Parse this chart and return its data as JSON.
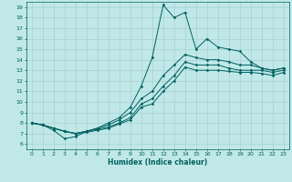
{
  "xlabel": "Humidex (Indice chaleur)",
  "bg_color": "#c0e8e8",
  "grid_color": "#a8d0d0",
  "line_color": "#006060",
  "xlim": [
    -0.5,
    23.5
  ],
  "ylim": [
    5.5,
    19.5
  ],
  "xticks": [
    0,
    1,
    2,
    3,
    4,
    5,
    6,
    7,
    8,
    9,
    10,
    11,
    12,
    13,
    14,
    15,
    16,
    17,
    18,
    19,
    20,
    21,
    22,
    23
  ],
  "yticks": [
    6,
    7,
    8,
    9,
    10,
    11,
    12,
    13,
    14,
    15,
    16,
    17,
    18,
    19
  ],
  "line1_y": [
    8.0,
    7.8,
    7.3,
    6.5,
    6.7,
    7.2,
    7.5,
    8.0,
    8.5,
    9.5,
    11.5,
    14.2,
    19.2,
    18.0,
    18.5,
    15.0,
    16.0,
    15.2,
    15.0,
    14.8,
    13.8,
    13.2,
    13.0,
    13.2
  ],
  "line2_y": [
    8.0,
    7.8,
    7.5,
    7.2,
    7.0,
    7.2,
    7.5,
    7.8,
    8.3,
    9.0,
    10.3,
    11.0,
    12.5,
    13.5,
    14.5,
    14.2,
    14.0,
    14.0,
    13.8,
    13.5,
    13.5,
    13.2,
    13.0,
    13.2
  ],
  "line3_y": [
    8.0,
    7.8,
    7.5,
    7.2,
    7.0,
    7.2,
    7.4,
    7.6,
    8.0,
    8.5,
    9.8,
    10.3,
    11.5,
    12.5,
    13.8,
    13.5,
    13.5,
    13.5,
    13.2,
    13.0,
    13.0,
    13.0,
    12.8,
    13.0
  ],
  "line4_y": [
    8.0,
    7.8,
    7.5,
    7.2,
    7.0,
    7.1,
    7.3,
    7.5,
    7.9,
    8.3,
    9.5,
    9.8,
    11.0,
    12.0,
    13.3,
    13.0,
    13.0,
    13.0,
    12.9,
    12.8,
    12.8,
    12.7,
    12.5,
    12.8
  ]
}
